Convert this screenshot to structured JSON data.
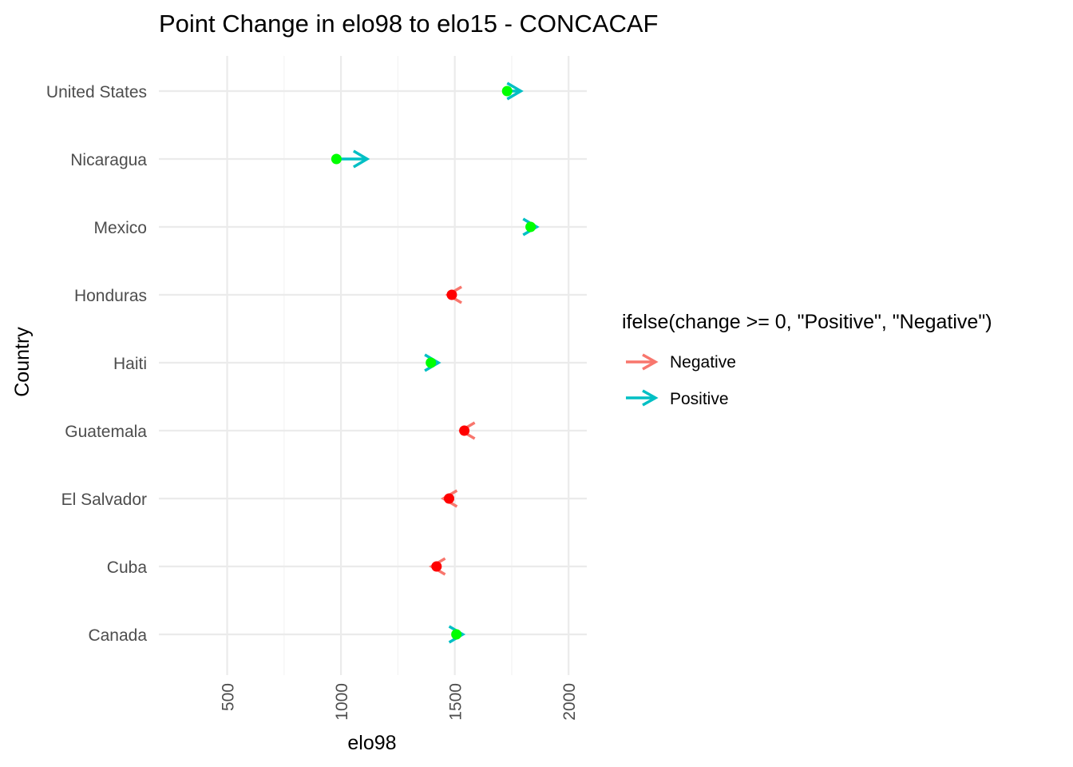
{
  "chart_data": {
    "type": "scatter",
    "title": "Point Change in elo98 to elo15 - CONCACAF",
    "xlabel": "elo98",
    "ylabel": "Country",
    "xlim": [
      200,
      2080
    ],
    "x_ticks": [
      500,
      1000,
      1500,
      2000
    ],
    "x_tick_labels": [
      "500",
      "1000",
      "1500",
      "2000"
    ],
    "x_tick_rotation": "vertical",
    "categories": [
      "Canada",
      "Cuba",
      "El Salvador",
      "Guatemala",
      "Haiti",
      "Honduras",
      "Mexico",
      "Nicaragua",
      "United States"
    ],
    "elo98": [
      1507,
      1420,
      1475,
      1542,
      1395,
      1487,
      1833,
      980,
      1730
    ],
    "elo15": [
      1535,
      1398,
      1450,
      1528,
      1428,
      1470,
      1860,
      1115,
      1790
    ],
    "point_colors": {
      "Positive": "#00ff00",
      "Negative": "#ff0000"
    },
    "grid": true,
    "legend": {
      "title": "ifelse(change >= 0, \"Positive\", \"Negative\")",
      "position": "right",
      "entries": [
        {
          "label": "Negative",
          "color": "#f8766d"
        },
        {
          "label": "Positive",
          "color": "#00bfc4"
        }
      ]
    }
  }
}
